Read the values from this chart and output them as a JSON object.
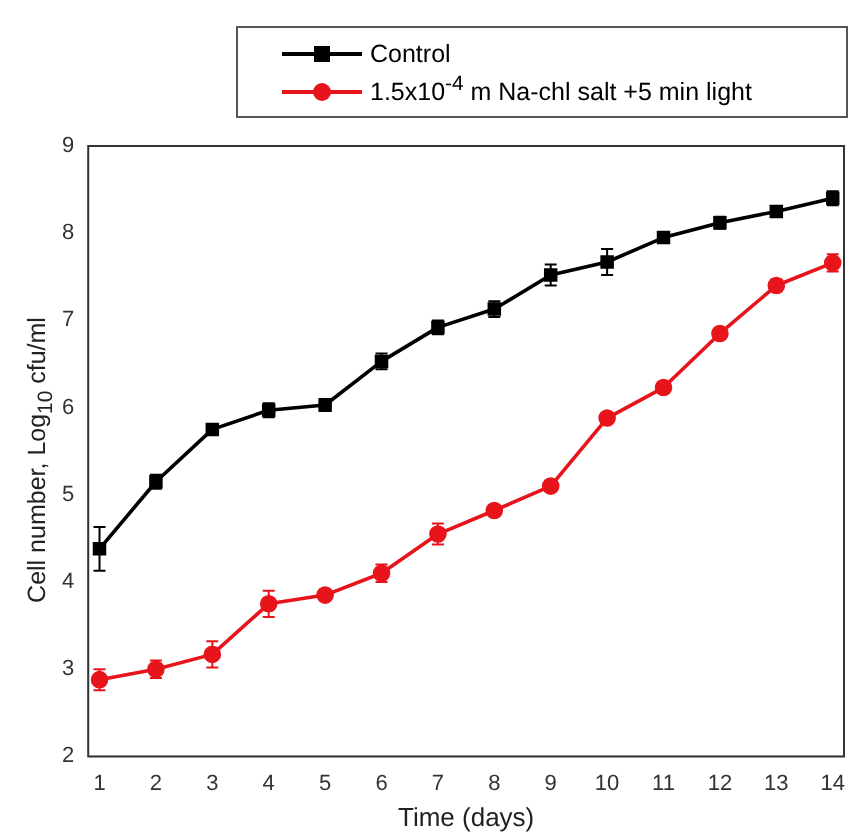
{
  "chart_data": {
    "type": "line",
    "xlabel": "Time (days)",
    "ylabel": "Cell number, Log$_{10}$ cfu/ml",
    "x": [
      1,
      2,
      3,
      4,
      5,
      6,
      7,
      8,
      9,
      10,
      11,
      12,
      13,
      14
    ],
    "xlim": [
      0.8,
      14.2
    ],
    "xticks": [
      1,
      2,
      3,
      4,
      5,
      6,
      7,
      8,
      9,
      10,
      11,
      12,
      13,
      14
    ],
    "ylim": [
      2,
      9
    ],
    "yticks": [
      2,
      3,
      4,
      5,
      6,
      7,
      8,
      9
    ],
    "grid": false,
    "legend": "top",
    "line_style": "solid",
    "series": [
      {
        "name": "Control",
        "color": "#000000",
        "marker": "square",
        "values": [
          4.38,
          5.15,
          5.75,
          5.97,
          6.03,
          6.53,
          6.92,
          7.13,
          7.52,
          7.67,
          7.95,
          8.12,
          8.25,
          8.4
        ],
        "errors": [
          0.25,
          0.08,
          null,
          0.08,
          0.07,
          0.09,
          0.08,
          0.09,
          0.12,
          0.15,
          0.04,
          0.07,
          0.04,
          0.08
        ]
      },
      {
        "name": "1.5x10$^{-4}$ m Na-chl salt +5 min light",
        "color": "#e8141b",
        "marker": "circle",
        "values": [
          2.88,
          3.0,
          3.17,
          3.75,
          3.85,
          4.1,
          4.55,
          4.82,
          5.1,
          5.88,
          6.23,
          6.85,
          7.4,
          7.66
        ],
        "errors": [
          0.12,
          0.1,
          0.15,
          0.15,
          0.06,
          0.1,
          0.12,
          null,
          0.06,
          null,
          0.06,
          null,
          0.07,
          0.1
        ]
      }
    ]
  }
}
